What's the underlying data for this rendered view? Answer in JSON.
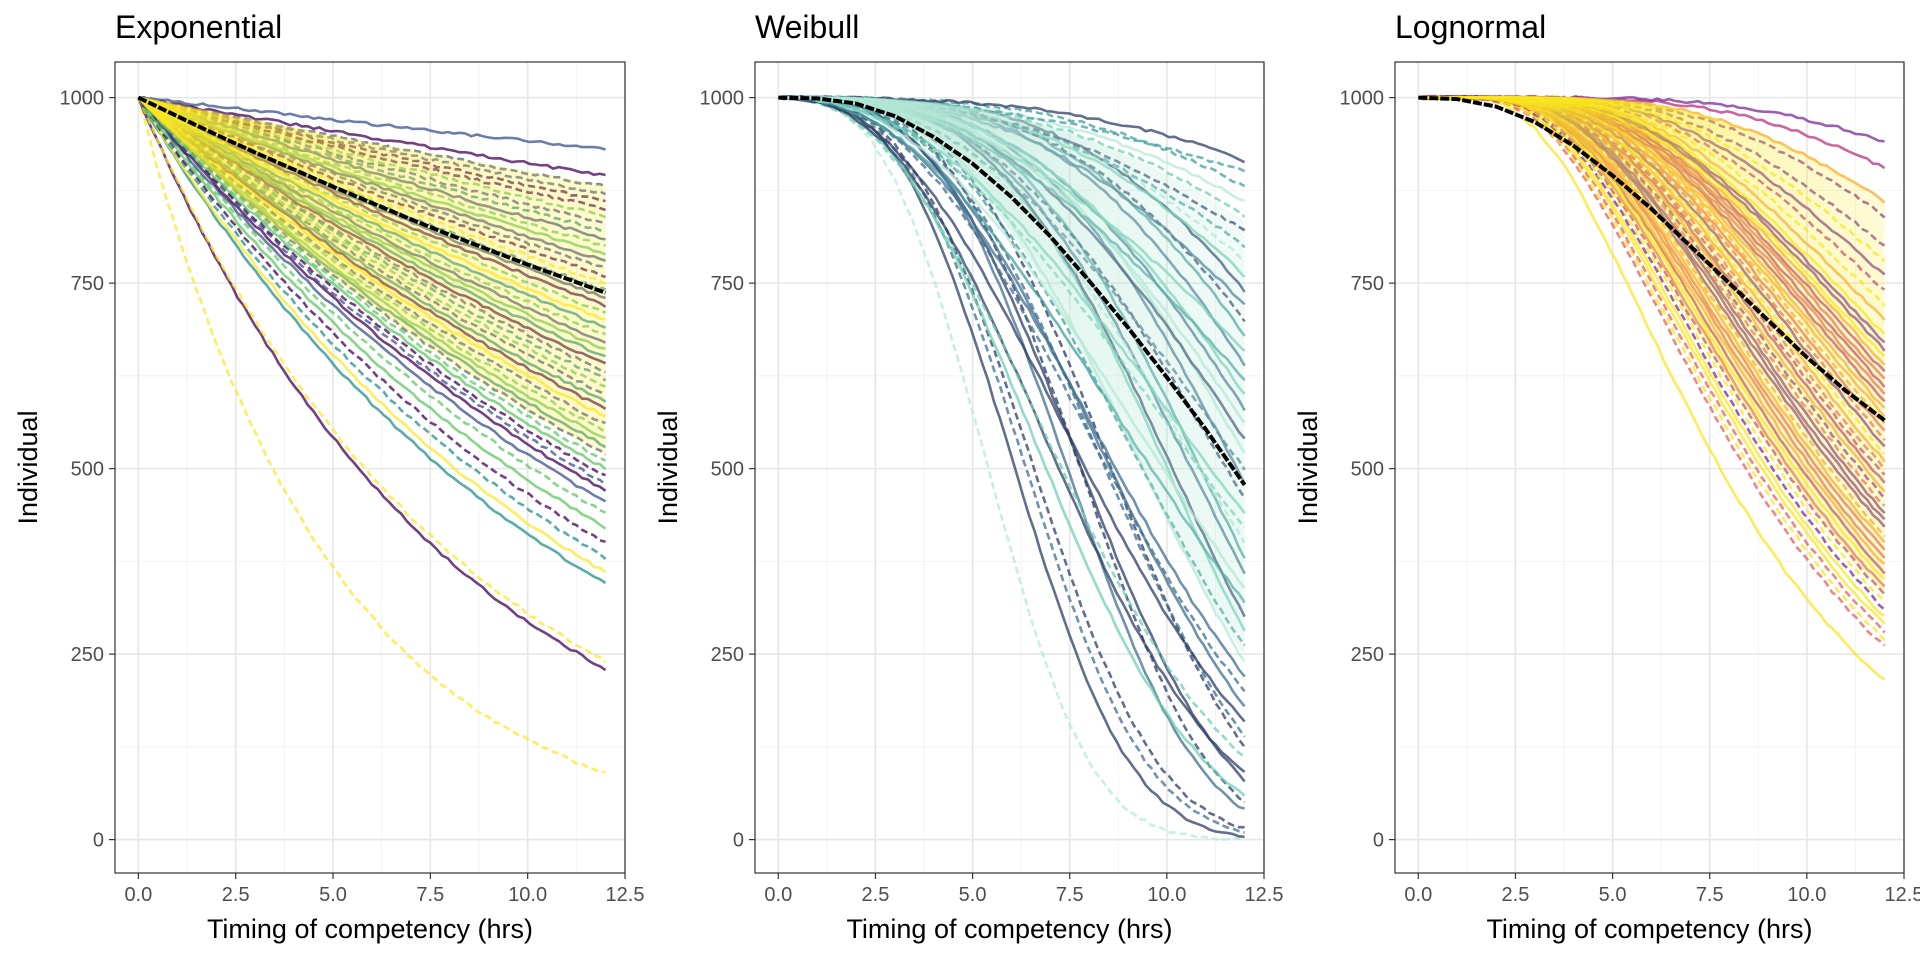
{
  "chart_data": [
    {
      "type": "line",
      "title": "Exponential",
      "xlabel": "Timing of competency (hrs)",
      "ylabel": "Individual",
      "xlim": [
        -0.6,
        12.5
      ],
      "ylim": [
        -45,
        1048
      ],
      "x_ticks": [
        "0.0",
        "2.5",
        "5.0",
        "7.5",
        "10.0",
        "12.5"
      ],
      "y_ticks": [
        "0",
        "250",
        "500",
        "750",
        "1000"
      ],
      "grid": true,
      "legend": "none",
      "palette": [
        "#440154",
        "#3b528b",
        "#21908c",
        "#5dc863",
        "#fde725"
      ],
      "highlight_color": "#000000",
      "curve_family": "exponential",
      "highlight_series": {
        "x": [
          0,
          1,
          2,
          3,
          4,
          5,
          6,
          7,
          8,
          9,
          10,
          11,
          12
        ],
        "y": [
          1000,
          975,
          950,
          926,
          903,
          880,
          858,
          836,
          815,
          795,
          775,
          756,
          737
        ]
      },
      "series_end_values": [
        90,
        230,
        240,
        345,
        360,
        380,
        400,
        420,
        440,
        455,
        470,
        480,
        490,
        500,
        510,
        520,
        530,
        540,
        550,
        560,
        570,
        580,
        590,
        600,
        610,
        620,
        630,
        640,
        650,
        660,
        670,
        680,
        690,
        700,
        710,
        720,
        730,
        740,
        750,
        760,
        770,
        780,
        790,
        800,
        810,
        820,
        830,
        840,
        850,
        860,
        870,
        880,
        895,
        930
      ]
    },
    {
      "type": "line",
      "title": "Weibull",
      "xlabel": "Timing of competency (hrs)",
      "ylabel": "Individual",
      "xlim": [
        -0.6,
        12.5
      ],
      "ylim": [
        -45,
        1048
      ],
      "x_ticks": [
        "0.0",
        "2.5",
        "5.0",
        "7.5",
        "10.0",
        "12.5"
      ],
      "y_ticks": [
        "0",
        "250",
        "500",
        "750",
        "1000"
      ],
      "grid": true,
      "legend": "none",
      "palette": [
        "#2c3e66",
        "#3f6f8f",
        "#3f9f9c",
        "#6ccfb4",
        "#b5ead7"
      ],
      "highlight_color": "#000000",
      "curve_family": "weibull",
      "highlight_series": {
        "x": [
          0,
          1,
          2,
          3,
          4,
          5,
          6,
          7,
          8,
          9,
          10,
          11,
          12
        ],
        "y": [
          1000,
          999,
          992,
          975,
          947,
          911,
          866,
          813,
          753,
          690,
          623,
          553,
          478
        ]
      },
      "series_end_values": [
        0,
        5,
        10,
        15,
        40,
        50,
        60,
        80,
        90,
        110,
        125,
        140,
        160,
        180,
        200,
        220,
        240,
        260,
        280,
        300,
        320,
        340,
        360,
        380,
        400,
        420,
        440,
        460,
        480,
        500,
        520,
        540,
        560,
        580,
        600,
        620,
        640,
        660,
        680,
        700,
        720,
        740,
        760,
        780,
        800,
        820,
        840,
        860,
        880,
        900,
        915
      ]
    },
    {
      "type": "line",
      "title": "Lognormal",
      "xlabel": "Timing of competency (hrs)",
      "ylabel": "Individual",
      "xlim": [
        -0.6,
        12.5
      ],
      "ylim": [
        -45,
        1048
      ],
      "x_ticks": [
        "0.0",
        "2.5",
        "5.0",
        "7.5",
        "10.0",
        "12.5"
      ],
      "y_ticks": [
        "0",
        "250",
        "500",
        "750",
        "1000"
      ],
      "grid": true,
      "legend": "none",
      "palette": [
        "#7b2a9a",
        "#b8327e",
        "#e85d5d",
        "#f9a03a",
        "#f9e721"
      ],
      "highlight_color": "#000000",
      "curve_family": "lognormal",
      "highlight_series": {
        "x": [
          0,
          1,
          2,
          3,
          4,
          5,
          6,
          7,
          8,
          9,
          10,
          11,
          12
        ],
        "y": [
          1000,
          998,
          988,
          967,
          935,
          895,
          850,
          800,
          750,
          700,
          650,
          605,
          565
        ]
      },
      "series_end_values": [
        215,
        260,
        270,
        280,
        290,
        300,
        310,
        320,
        330,
        340,
        350,
        360,
        370,
        380,
        390,
        400,
        410,
        420,
        430,
        440,
        450,
        460,
        470,
        480,
        490,
        500,
        510,
        520,
        530,
        540,
        550,
        560,
        570,
        580,
        590,
        600,
        610,
        620,
        630,
        640,
        650,
        660,
        670,
        680,
        700,
        720,
        740,
        760,
        780,
        800,
        840,
        860,
        905,
        940
      ]
    }
  ]
}
